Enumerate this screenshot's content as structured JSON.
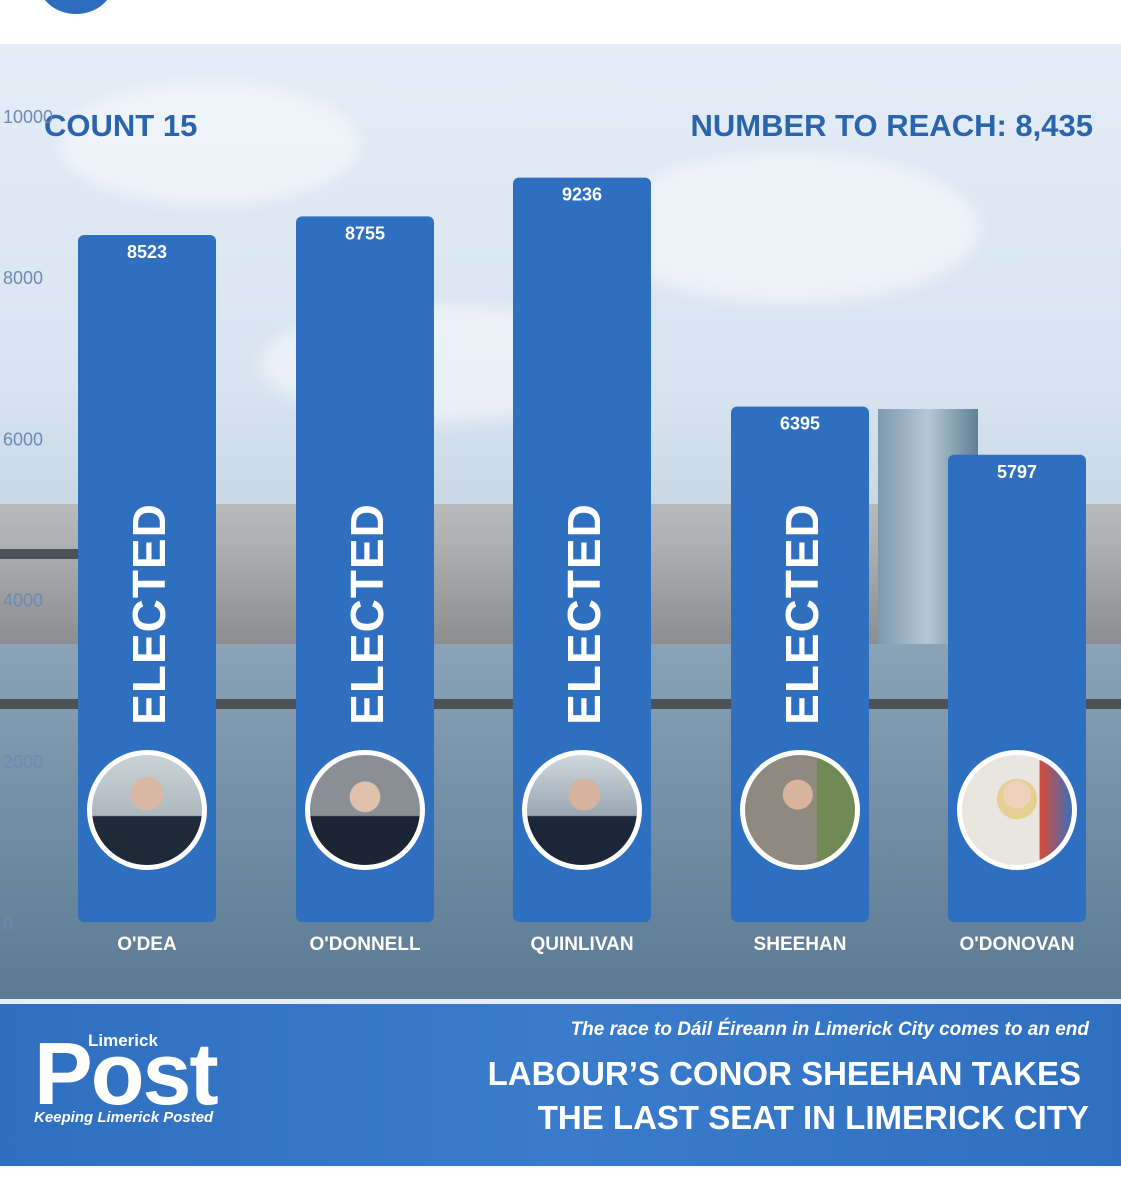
{
  "header": {
    "count": "COUNT 15",
    "quota": "NUMBER TO REACH: 8,435"
  },
  "chart_data": {
    "type": "bar",
    "categories": [
      "O'DEA",
      "O'DONNELL",
      "QUINLIVAN",
      "SHEEHAN",
      "O'DONOVAN"
    ],
    "values": [
      8523,
      8755,
      9236,
      6395,
      5797
    ],
    "value_labels": [
      "8523",
      "8755",
      "9236",
      "6395",
      "5797"
    ],
    "status": [
      "ELECTED",
      "ELECTED",
      "ELECTED",
      "ELECTED",
      ""
    ],
    "yticks": [
      0,
      2000,
      4000,
      6000,
      8000,
      10000
    ],
    "ytick_labels": [
      "0",
      "2000",
      "4000",
      "6000",
      "8000",
      "10000"
    ],
    "ylim": [
      0,
      10000
    ],
    "bar_color": "#2f6fc0",
    "grid": false
  },
  "footer": {
    "logo_small": "Limerick",
    "logo_big": "Post",
    "tagline": "Keeping Limerick Posted",
    "subtitle": "The race to Dáil Éireann in Limerick City comes to an end",
    "headline_line1": "LABOUR’S CONOR SHEEHAN TAKES",
    "headline_line2": "THE LAST SEAT IN LIMERICK CITY"
  }
}
